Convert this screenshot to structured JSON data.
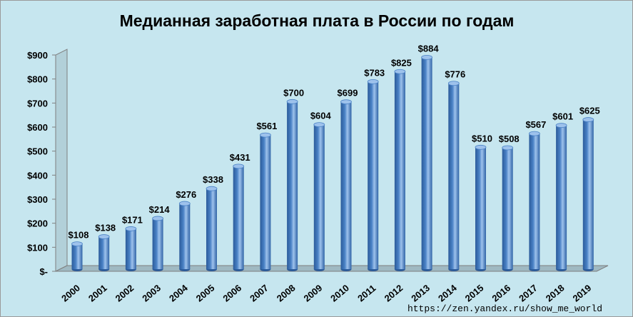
{
  "chart_data": {
    "type": "bar",
    "title": "Медианная заработная плата в России по годам",
    "categories": [
      "2000",
      "2001",
      "2002",
      "2003",
      "2004",
      "2005",
      "2006",
      "2007",
      "2008",
      "2009",
      "2010",
      "2011",
      "2012",
      "2013",
      "2014",
      "2015",
      "2016",
      "2017",
      "2018",
      "2019"
    ],
    "values": [
      108,
      138,
      171,
      214,
      276,
      338,
      431,
      561,
      700,
      604,
      699,
      783,
      825,
      884,
      776,
      510,
      508,
      567,
      601,
      625
    ],
    "data_labels": [
      "$108",
      "$138",
      "$171",
      "$214",
      "$276",
      "$338",
      "$431",
      "$561",
      "$700",
      "$604",
      "$699",
      "$783",
      "$825",
      "$884",
      "$776",
      "$510",
      "$508",
      "$567",
      "$601",
      "$625"
    ],
    "y_ticks": [
      0,
      100,
      200,
      300,
      400,
      500,
      600,
      700,
      800,
      900
    ],
    "y_tick_labels": [
      "$-",
      "$100",
      "$200",
      "$300",
      "$400",
      "$500",
      "$600",
      "$700",
      "$800",
      "$900"
    ],
    "ylim": [
      0,
      900
    ],
    "xlabel": "",
    "ylabel": "",
    "grid": false,
    "legend": "none"
  },
  "source": "https://zen.yandex.ru/show_me_world",
  "colors": {
    "background": "#c6e6ef",
    "bar_dark": "#2b5b9a",
    "bar_mid": "#4a82c6",
    "bar_light": "#9ec2ec",
    "wall_side": "#b2d0d9",
    "floor": "#9fb9c2",
    "axis": "#7f7f7f"
  }
}
